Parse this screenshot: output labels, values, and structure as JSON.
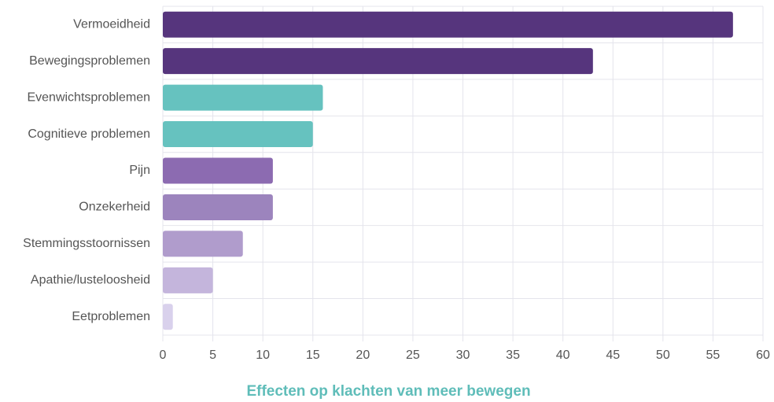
{
  "chart_data": {
    "type": "bar",
    "orientation": "horizontal",
    "title": "Effecten op klachten van meer bewegen",
    "categories": [
      "Vermoeidheid",
      "Bewegingsproblemen",
      "Evenwichtsproblemen",
      "Cognitieve problemen",
      "Pijn",
      "Onzekerheid",
      "Stemmingsstoornissen",
      "Apathie/lusteloosheid",
      "Eetproblemen"
    ],
    "values": [
      57,
      43,
      16,
      15,
      11,
      11,
      8,
      5,
      1
    ],
    "colors": [
      "#56357d",
      "#56357d",
      "#66c2bf",
      "#66c2bf",
      "#8c6bb1",
      "#9c84bd",
      "#b09ccc",
      "#c4b5dc",
      "#d9d1ec"
    ],
    "xlim": [
      0,
      60
    ],
    "xticks": [
      0,
      5,
      10,
      15,
      20,
      25,
      30,
      35,
      40,
      45,
      50,
      55,
      60
    ],
    "grid": true
  }
}
